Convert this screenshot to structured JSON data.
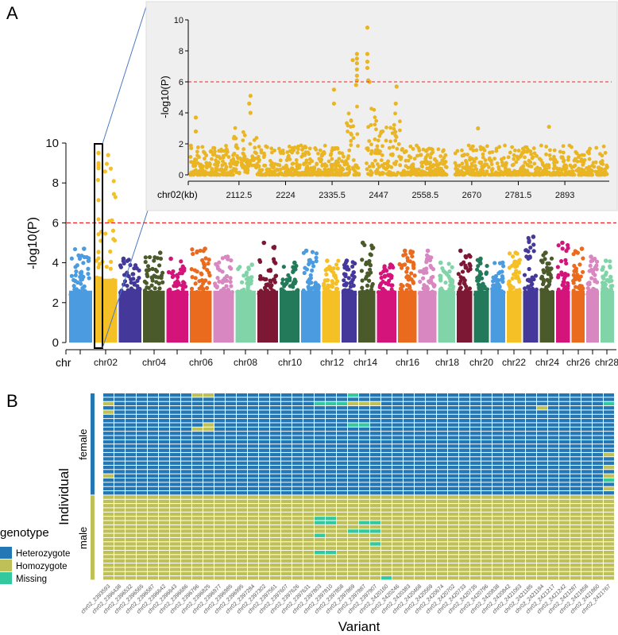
{
  "panel_labels": {
    "a": "A",
    "b": "B"
  },
  "chart_data": [
    {
      "type": "scatter",
      "subtype": "manhattan",
      "ylabel": "-log10(P)",
      "xlabel": "chr",
      "ylim": [
        0,
        10
      ],
      "yticks": [
        0,
        2,
        4,
        6,
        8,
        10
      ],
      "threshold": 6,
      "threshold_color": "#e8262a",
      "chromosomes": [
        "chr01",
        "chr02",
        "chr03",
        "chr04",
        "chr05",
        "chr06",
        "chr07",
        "chr08",
        "chr09",
        "chr10",
        "chr11",
        "chr12",
        "chr13",
        "chr14",
        "chr15",
        "chr16",
        "chr17",
        "chr18",
        "chr19",
        "chr20",
        "chr21",
        "chr22",
        "chr23",
        "chr24",
        "chr25",
        "chr26",
        "chr27",
        "chr28"
      ],
      "tick_labels": [
        "chr02",
        "chr04",
        "chr06",
        "chr08",
        "chr10",
        "chr12",
        "chr14",
        "chr16",
        "chr18",
        "chr20",
        "chr22",
        "chr24",
        "chr26",
        "chr28"
      ],
      "max_neglog10p_per_chr": [
        4.7,
        9.5,
        4.2,
        4.5,
        4.2,
        4.7,
        4.3,
        3.9,
        5.0,
        4.0,
        4.6,
        4.1,
        4.1,
        5.0,
        3.9,
        4.6,
        4.6,
        4.0,
        4.6,
        4.2,
        4.0,
        4.5,
        5.3,
        4.5,
        5.0,
        4.7,
        4.3,
        4.1
      ],
      "colors": [
        "#4a9be0",
        "#f5bf26",
        "#44399a",
        "#4a5a2b",
        "#d4147a",
        "#ea6a1e",
        "#d887c1",
        "#80d4a8",
        "#7c1833",
        "#237a5b"
      ],
      "highlighted_chr": "chr02",
      "grid": false
    },
    {
      "type": "scatter",
      "subtype": "regional-zoom",
      "xlabel": "chr02(kb)",
      "ylabel": "-log10(P)",
      "xticks": [
        2112.5,
        2224,
        2335.5,
        2447,
        2558.5,
        2670,
        2781.5,
        2893
      ],
      "xlim": [
        1991,
        3000
      ],
      "ylim": [
        0,
        10
      ],
      "yticks": [
        0,
        2,
        4,
        6,
        8,
        10
      ],
      "threshold": 6,
      "point_color": "#eab523",
      "background": "#efefef",
      "peaks": [
        [
          2009,
          3.7
        ],
        [
          2009,
          2.8
        ],
        [
          2140,
          5.1
        ],
        [
          2137,
          4.6
        ],
        [
          2140,
          4.0
        ],
        [
          2340,
          5.5
        ],
        [
          2340,
          4.6
        ],
        [
          2385,
          7.4
        ],
        [
          2395,
          7.8
        ],
        [
          2395,
          7.5
        ],
        [
          2395,
          7.2
        ],
        [
          2395,
          6.8
        ],
        [
          2395,
          6.4
        ],
        [
          2395,
          6.1
        ],
        [
          2393,
          5.8
        ],
        [
          2420,
          9.5
        ],
        [
          2420,
          7.8
        ],
        [
          2420,
          7.3
        ],
        [
          2420,
          6.9
        ],
        [
          2422,
          6.1
        ],
        [
          2425,
          6.0
        ],
        [
          2490,
          5.7
        ],
        [
          2488,
          4.6
        ],
        [
          2685,
          3.0
        ],
        [
          2855,
          3.1
        ]
      ],
      "gaps_kb": [
        [
          2400,
          2417
        ],
        [
          2610,
          2630
        ]
      ],
      "grid": false
    },
    {
      "type": "heatmap",
      "xlabel": "Variant",
      "ylabel": "Individual",
      "legend_title": "genotype",
      "legend": [
        {
          "label": "Heterozygote",
          "color": "#2277b4"
        },
        {
          "label": "Homozygote",
          "color": "#bfc158"
        },
        {
          "label": "Missing",
          "color": "#33c89d"
        }
      ],
      "variants": [
        "chr02_2393593",
        "chr02_2396438",
        "chr02_2396532",
        "chr02_2396565",
        "chr02_2396587",
        "chr02_2396642",
        "chr02_2396643",
        "chr02_2396686",
        "chr02_2396796",
        "chr02_2396825",
        "chr02_2396977",
        "chr02_2396985",
        "chr02_2396995",
        "chr02_2397284",
        "chr02_2397302",
        "chr02_2397561",
        "chr02_2397607",
        "chr02_2397626",
        "chr02_2397631",
        "chr02_2397803",
        "chr02_2397810",
        "chr02_2397858",
        "chr02_2397869",
        "chr02_2397887",
        "chr02_2397907",
        "chr02_2420160",
        "chr02_2420246",
        "chr02_2420383",
        "chr02_2420468",
        "chr02_2420569",
        "chr02_2420674",
        "chr02_2420702",
        "chr02_2420733",
        "chr02_2420735",
        "chr02_2420796",
        "chr02_2420838",
        "chr02_2420842",
        "chr02_2421063",
        "chr02_2421185",
        "chr02_2421194",
        "chr02_2421217",
        "chr02_2421242",
        "chr02_2421287",
        "chr02_2421858",
        "chr02_2421860",
        "chr02_2421767"
      ],
      "groups": [
        {
          "label": "female",
          "rows": 24,
          "default": "Heterozygote",
          "exceptions": [
            [
              0,
              8,
              "Homozygote"
            ],
            [
              0,
              9,
              "Homozygote"
            ],
            [
              0,
              22,
              "Missing"
            ],
            [
              2,
              0,
              "Homozygote"
            ],
            [
              2,
              19,
              "Missing"
            ],
            [
              2,
              20,
              "Missing"
            ],
            [
              2,
              21,
              "Missing"
            ],
            [
              2,
              22,
              "Homozygote"
            ],
            [
              2,
              23,
              "Homozygote"
            ],
            [
              2,
              24,
              "Homozygote"
            ],
            [
              2,
              45,
              "Missing"
            ],
            [
              3,
              39,
              "Homozygote"
            ],
            [
              4,
              0,
              "Homozygote"
            ],
            [
              7,
              9,
              "Homozygote"
            ],
            [
              7,
              22,
              "Missing"
            ],
            [
              7,
              23,
              "Missing"
            ],
            [
              8,
              8,
              "Homozygote"
            ],
            [
              8,
              9,
              "Homozygote"
            ],
            [
              14,
              45,
              "Homozygote"
            ],
            [
              17,
              45,
              "Homozygote"
            ],
            [
              19,
              0,
              "Homozygote"
            ],
            [
              19,
              45,
              "Homozygote"
            ],
            [
              20,
              45,
              "Missing"
            ],
            [
              22,
              45,
              "Homozygote"
            ]
          ]
        },
        {
          "label": "male",
          "rows": 20,
          "default": "Homozygote",
          "exceptions": [
            [
              5,
              19,
              "Missing"
            ],
            [
              5,
              20,
              "Missing"
            ],
            [
              6,
              19,
              "Missing"
            ],
            [
              6,
              20,
              "Missing"
            ],
            [
              6,
              23,
              "Missing"
            ],
            [
              6,
              24,
              "Missing"
            ],
            [
              8,
              22,
              "Missing"
            ],
            [
              8,
              23,
              "Missing"
            ],
            [
              8,
              24,
              "Missing"
            ],
            [
              9,
              19,
              "Missing"
            ],
            [
              11,
              24,
              "Missing"
            ],
            [
              13,
              19,
              "Missing"
            ],
            [
              13,
              20,
              "Missing"
            ],
            [
              19,
              25,
              "Missing"
            ]
          ]
        }
      ]
    }
  ]
}
